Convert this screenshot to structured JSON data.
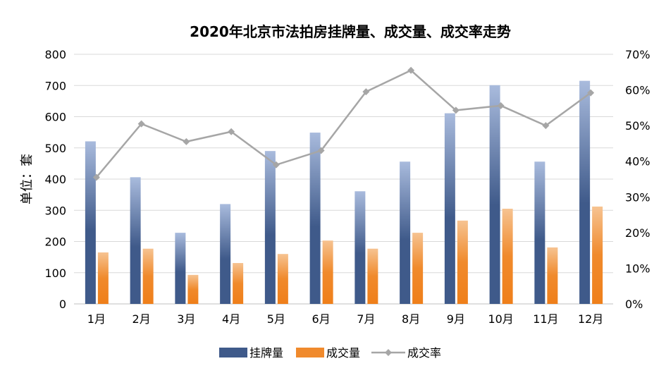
{
  "chart_data": {
    "type": "bar",
    "title": "2020年北京市法拍房挂牌量、成交量、成交率走势",
    "ylabel": "单位：套",
    "categories": [
      "1月",
      "2月",
      "3月",
      "4月",
      "5月",
      "6月",
      "7月",
      "8月",
      "9月",
      "10月",
      "11月",
      "12月"
    ],
    "ylim": [
      0,
      800
    ],
    "yticks": [
      0,
      100,
      200,
      300,
      400,
      500,
      600,
      700,
      800
    ],
    "y2lim": [
      0,
      70
    ],
    "y2ticks": [
      "0%",
      "10%",
      "20%",
      "30%",
      "40%",
      "50%",
      "60%",
      "70%"
    ],
    "series": [
      {
        "name": "挂牌量",
        "kind": "bar",
        "axis": "left",
        "color": "#3f5a8a",
        "values": [
          521,
          406,
          228,
          320,
          490,
          549,
          361,
          456,
          611,
          701,
          456,
          715
        ]
      },
      {
        "name": "成交量",
        "kind": "bar",
        "axis": "left",
        "color": "#f08a2c",
        "values": [
          165,
          177,
          93,
          131,
          160,
          203,
          177,
          228,
          267,
          305,
          181,
          312
        ]
      },
      {
        "name": "成交率",
        "kind": "line",
        "axis": "right",
        "color": "#a6a6a6",
        "values": [
          35.5,
          50.5,
          45.5,
          48.3,
          39.0,
          43.0,
          59.5,
          65.5,
          54.3,
          55.6,
          50.0,
          59.2
        ]
      }
    ],
    "grid": true,
    "legend": "bottom"
  }
}
